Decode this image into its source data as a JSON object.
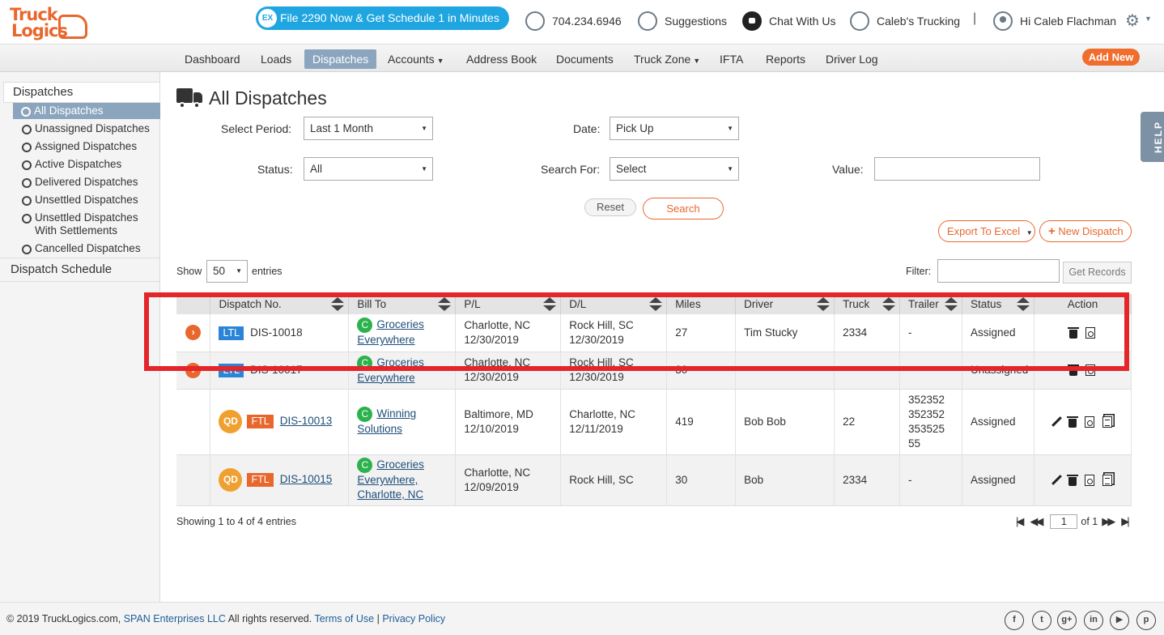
{
  "brand": {
    "logo_line1": "Truck",
    "logo_line2": "Logics"
  },
  "header": {
    "promo": "File 2290 Now & Get Schedule 1 in Minutes",
    "promo_badge": "EX",
    "phone": "704.234.6946",
    "suggestions": "Suggestions",
    "chat": "Chat With Us",
    "company": "Caleb's Trucking",
    "separator": "|",
    "greeting": "Hi Caleb Flachman"
  },
  "nav": {
    "items": [
      "Dashboard",
      "Loads",
      "Dispatches",
      "Accounts",
      "Address Book",
      "Documents",
      "Truck Zone",
      "IFTA",
      "Reports",
      "Driver Log"
    ],
    "active": "Dispatches",
    "add_new": "Add New"
  },
  "sidebar": {
    "heading": "Dispatches",
    "items": [
      "All Dispatches",
      "Unassigned Dispatches",
      "Assigned Dispatches",
      "Active Dispatches",
      "Delivered Dispatches",
      "Unsettled Dispatches",
      "Unsettled Dispatches With Settlements",
      "Cancelled Dispatches"
    ],
    "active": "All Dispatches",
    "schedule": "Dispatch Schedule"
  },
  "page": {
    "title": "All Dispatches",
    "help": "HELP"
  },
  "filters": {
    "period_label": "Select Period:",
    "period_value": "Last 1 Month",
    "date_label": "Date:",
    "date_value": "Pick Up",
    "status_label": "Status:",
    "status_value": "All",
    "search_for_label": "Search For:",
    "search_for_value": "Select",
    "value_label": "Value:",
    "value": "",
    "reset": "Reset",
    "search": "Search",
    "export": "Export To Excel",
    "new_dispatch": "New Dispatch"
  },
  "table_controls": {
    "show": "Show",
    "entries_value": "50",
    "entries": "entries",
    "filter": "Filter:",
    "get_records": "Get Records"
  },
  "table": {
    "columns": [
      "Dispatch No.",
      "Bill To",
      "P/L",
      "D/L",
      "Miles",
      "Driver",
      "Truck",
      "Trailer",
      "Status",
      "Action"
    ],
    "rows": [
      {
        "type": "LTL",
        "no": "DIS-10018",
        "bill_to_1": "Groceries",
        "bill_to_2": "Everywhere",
        "bill_to_3": "",
        "pl_city": "Charlotte, NC",
        "pl_date": "12/30/2019",
        "dl_city": "Rock Hill, SC",
        "dl_date": "12/30/2019",
        "miles": "27",
        "driver": "Tim Stucky",
        "truck": "2334",
        "trailer": "-",
        "status": "Assigned"
      },
      {
        "type": "LTL",
        "no": "DIS-10017",
        "bill_to_1": "Groceries",
        "bill_to_2": "Everywhere",
        "bill_to_3": "",
        "pl_city": "Charlotte, NC",
        "pl_date": "12/30/2019",
        "dl_city": "Rock Hill, SC",
        "dl_date": "12/30/2019",
        "miles": "30",
        "driver": "",
        "truck": "",
        "trailer": "",
        "status": "Unassigned"
      },
      {
        "type": "FTL",
        "no": "DIS-10013",
        "bill_to_1": "Winning",
        "bill_to_2": "Solutions",
        "bill_to_3": "",
        "pl_city": "Baltimore, MD",
        "pl_date": "12/10/2019",
        "dl_city": "Charlotte, NC",
        "dl_date": "12/11/2019",
        "miles": "419",
        "driver": "Bob Bob",
        "truck": "22",
        "trailer_lines": [
          "352352",
          "352352",
          "353525",
          "55"
        ],
        "status": "Assigned"
      },
      {
        "type": "FTL",
        "no": "DIS-10015",
        "bill_to_1": "Groceries",
        "bill_to_2": "Everywhere,",
        "bill_to_3": "Charlotte, NC",
        "pl_city": "Charlotte, NC",
        "pl_date": "12/09/2019",
        "dl_city": "Rock Hill, SC",
        "dl_date": "",
        "miles": "30",
        "driver": "Bob",
        "truck": "2334",
        "trailer": "-",
        "status": "Assigned"
      }
    ],
    "qd_badge": "QD",
    "c_badge": "C"
  },
  "pagination": {
    "showing": "Showing 1 to 4 of 4 entries",
    "page": "1",
    "of": "of 1"
  },
  "footer": {
    "copyright": "© 2019 TruckLogics.com, ",
    "company": "SPAN Enterprises LLC",
    "rights": " All rights reserved. ",
    "terms": "Terms of Use",
    "sep": " | ",
    "privacy": "Privacy Policy"
  },
  "colors": {
    "accent": "#e8672d",
    "nav_active": "#8aa5bd",
    "promo": "#1fa6e0",
    "highlight": "#e4252a",
    "link": "#1f4f7a"
  }
}
